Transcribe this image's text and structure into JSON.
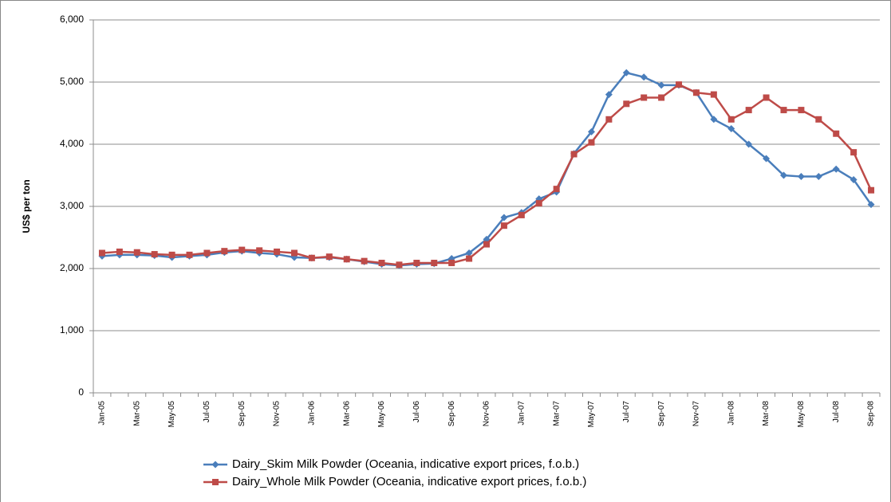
{
  "chart_data": {
    "type": "line",
    "y_label": "US$ per ton",
    "categories": [
      "Jan-05",
      null,
      "Mar-05",
      null,
      "May-05",
      null,
      "Jul-05",
      null,
      "Sep-05",
      null,
      "Nov-05",
      null,
      "Jan-06",
      null,
      "Mar-06",
      null,
      "May-06",
      null,
      "Jul-06",
      null,
      "Sep-06",
      null,
      "Nov-06",
      null,
      "Jan-07",
      null,
      "Mar-07",
      null,
      "May-07",
      null,
      "Jul-07",
      null,
      "Sep-07",
      null,
      "Nov-07",
      null,
      "Jan-08",
      null,
      "Mar-08",
      null,
      "May-08",
      null,
      "Jul-08",
      null,
      "Sep-08"
    ],
    "series": [
      {
        "name": "Dairy_Skim Milk Powder (Oceania, indicative export prices, f.o.b.)",
        "color": "#4a7ebb",
        "marker": "diamond",
        "values": [
          2200,
          2220,
          2220,
          2210,
          2180,
          2200,
          2220,
          2260,
          2280,
          2250,
          2230,
          2180,
          2170,
          2180,
          2150,
          2110,
          2070,
          2050,
          2070,
          2080,
          2160,
          2250,
          2470,
          2820,
          2900,
          3120,
          3230,
          3850,
          4200,
          4800,
          5150,
          5080,
          4950,
          4950,
          4830,
          4400,
          4250,
          4000,
          3770,
          3500,
          3480,
          3480,
          3600,
          3430,
          3030
        ]
      },
      {
        "name": "Dairy_Whole Milk Powder (Oceania, indicative export prices, f.o.b.)",
        "color": "#be4b48",
        "marker": "square",
        "values": [
          2250,
          2270,
          2260,
          2230,
          2220,
          2220,
          2250,
          2280,
          2300,
          2290,
          2270,
          2250,
          2170,
          2190,
          2150,
          2120,
          2090,
          2060,
          2090,
          2090,
          2090,
          2160,
          2390,
          2690,
          2860,
          3050,
          3280,
          3840,
          4030,
          4400,
          4650,
          4750,
          4750,
          4960,
          4830,
          4800,
          4400,
          4550,
          4750,
          4550,
          4550,
          4400,
          4170,
          3870,
          3260
        ]
      }
    ],
    "ylim": [
      0,
      6000
    ],
    "yticks": [
      0,
      {
        "value": 1000,
        "label": "1,000"
      },
      {
        "value": 2000,
        "label": "2,000"
      },
      {
        "value": 3000,
        "label": "3,000"
      },
      {
        "value": 4000,
        "label": "4,000"
      },
      {
        "value": 5000,
        "label": "5,000"
      },
      {
        "value": 6000,
        "label": "6,000"
      }
    ],
    "grid": true,
    "legend": "bottom"
  }
}
